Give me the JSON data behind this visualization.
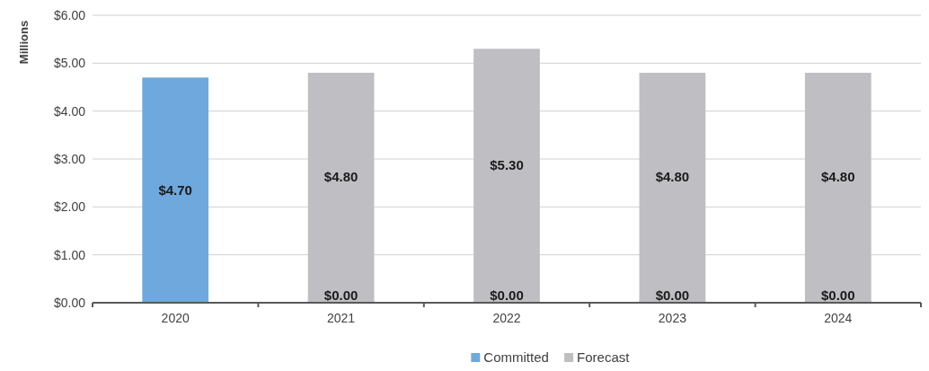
{
  "chart_data": {
    "type": "bar",
    "stacked": true,
    "ylabel": "Millions",
    "categories": [
      "2020",
      "2021",
      "2022",
      "2023",
      "2024"
    ],
    "series": [
      {
        "name": "Committed",
        "color": "#6fa8dc",
        "values": [
          4.7,
          0,
          0,
          0,
          0
        ],
        "value_labels": [
          "$4.70",
          "$0.00",
          "$0.00",
          "$0.00",
          "$0.00"
        ]
      },
      {
        "name": "Forecast",
        "color": "#bfbfc3",
        "values": [
          null,
          4.8,
          5.3,
          4.8,
          4.8
        ],
        "value_labels": [
          null,
          "$4.80",
          "$5.30",
          "$4.80",
          "$4.80"
        ]
      }
    ],
    "ylim": [
      0,
      6
    ],
    "yticks": [
      {
        "value": 0,
        "label": "$0.00"
      },
      {
        "value": 1,
        "label": "$1.00"
      },
      {
        "value": 2,
        "label": "$2.00"
      },
      {
        "value": 3,
        "label": "$3.00"
      },
      {
        "value": 4,
        "label": "$4.00"
      },
      {
        "value": 5,
        "label": "$5.00"
      },
      {
        "value": 6,
        "label": "$6.00"
      }
    ],
    "grid": "y",
    "legend": "bottom"
  }
}
